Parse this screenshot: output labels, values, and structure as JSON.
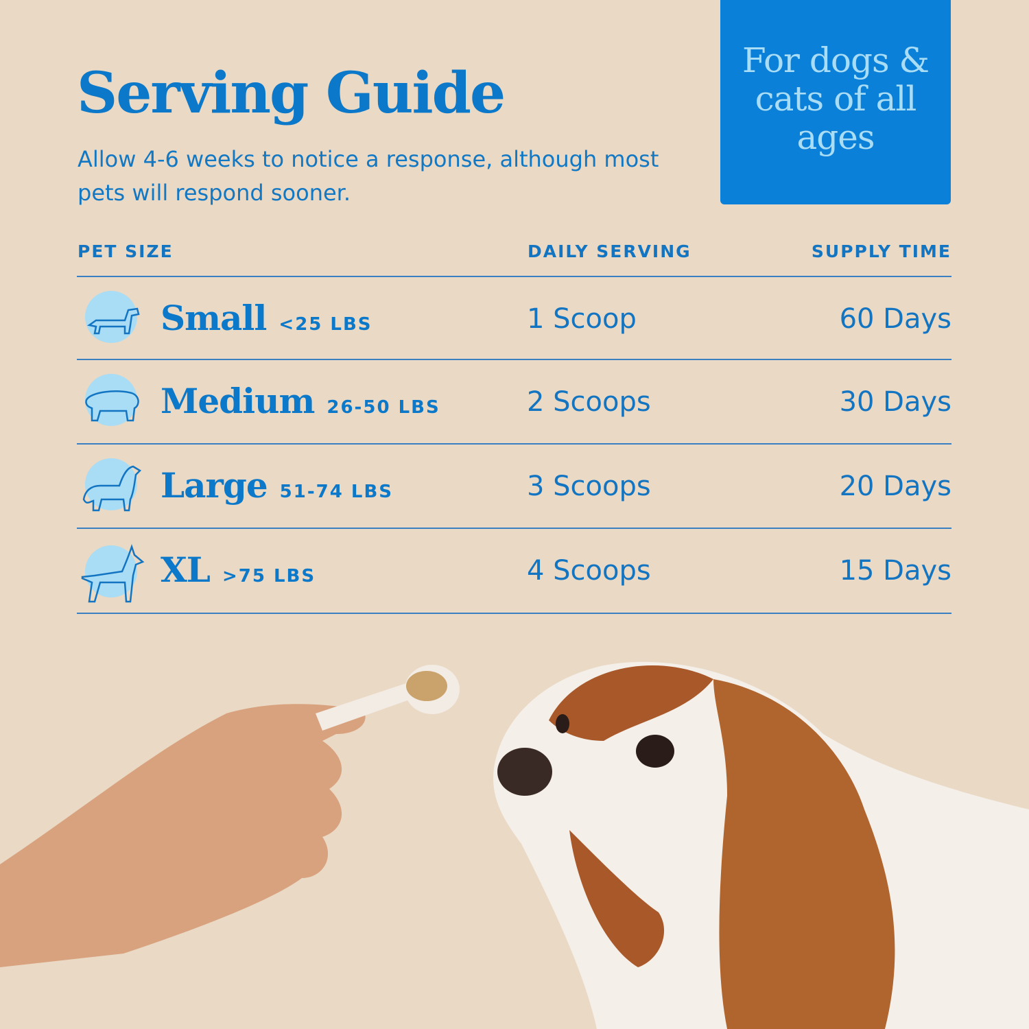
{
  "title": "Serving Guide",
  "subtitle": "Allow 4-6 weeks to notice a response, although most pets will respond sooner.",
  "badge": "For dogs & cats of all ages",
  "table": {
    "headers": [
      "PET SIZE",
      "DAILY SERVING",
      "SUPPLY TIME"
    ],
    "rows": [
      {
        "size": "Small",
        "weight": "<25 LBS",
        "serving": "1 Scoop",
        "supply": "60 Days",
        "icon": "dachshund-icon"
      },
      {
        "size": "Medium",
        "weight": "26-50 LBS",
        "serving": "2 Scoops",
        "supply": "30 Days",
        "icon": "bulldog-icon"
      },
      {
        "size": "Large",
        "weight": "51-74 LBS",
        "serving": "3 Scoops",
        "supply": "20 Days",
        "icon": "spaniel-icon"
      },
      {
        "size": "XL",
        "weight": ">75 LBS",
        "serving": "4 Scoops",
        "supply": "15 Days",
        "icon": "doberman-icon"
      }
    ]
  },
  "colors": {
    "background": "#e9d9c5",
    "accent": "#0b78c9",
    "badge": "#0b80d8",
    "icon_circle": "#a9dcf5"
  }
}
